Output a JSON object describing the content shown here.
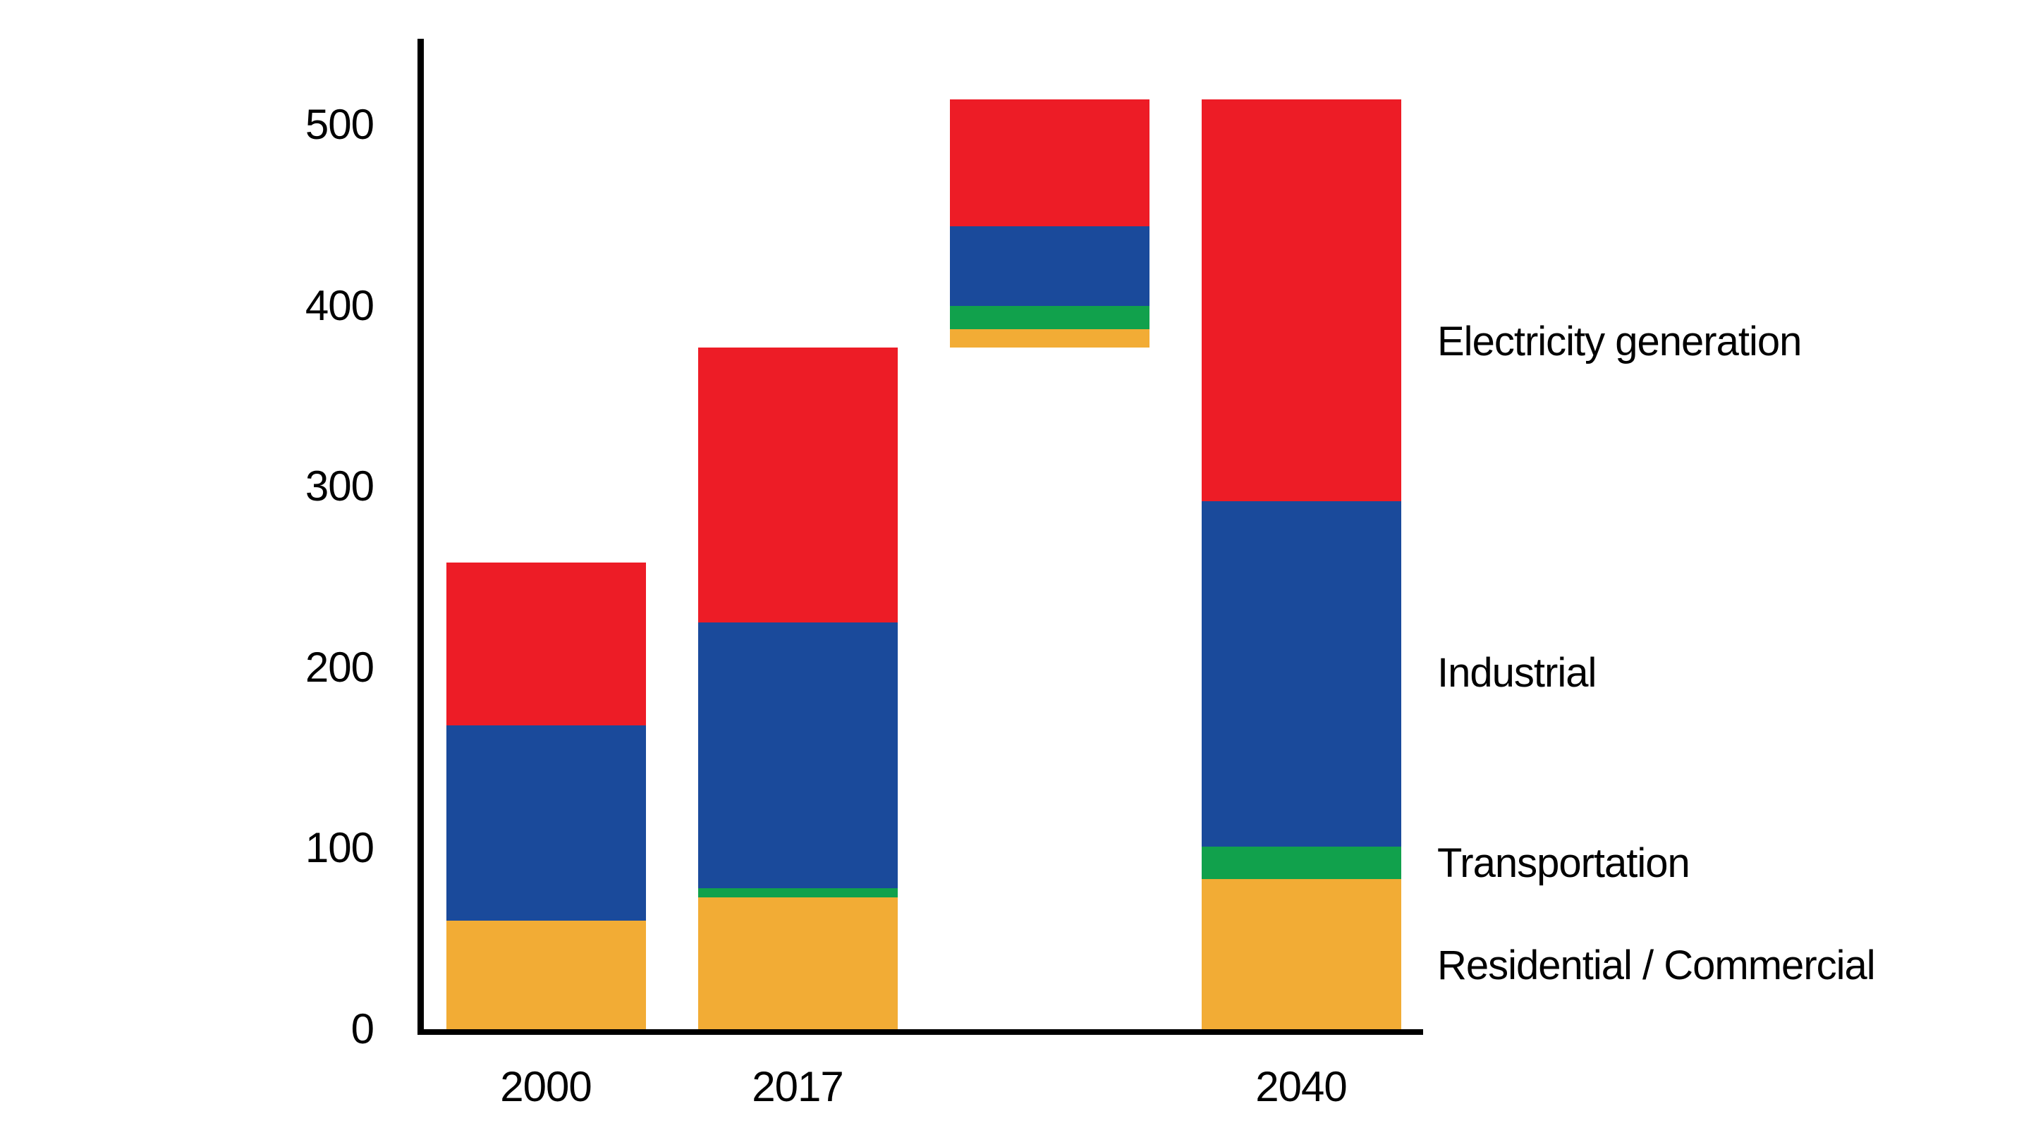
{
  "chart_data": {
    "type": "bar",
    "subtype": "stacked-with-floating-increment-bar",
    "title": "",
    "xlabel": "",
    "ylabel": "",
    "ylim": [
      0,
      540
    ],
    "yticks": [
      0,
      100,
      200,
      300,
      400,
      500
    ],
    "grid": false,
    "legend_position": "right",
    "categories": [
      "2000",
      "2017",
      "",
      "2040"
    ],
    "bar_bases": [
      0,
      0,
      377,
      0
    ],
    "series": [
      {
        "name": "Residential / Commercial",
        "color": "#F2AC35",
        "values": [
          60,
          73,
          10,
          83
        ]
      },
      {
        "name": "Transportation",
        "color": "#11A14C",
        "values": [
          0,
          5,
          13,
          18
        ]
      },
      {
        "name": "Industrial",
        "color": "#1A4A9B",
        "values": [
          108,
          147,
          44,
          191
        ]
      },
      {
        "name": "Electricity generation",
        "color": "#ED1C26",
        "values": [
          90,
          152,
          70,
          222
        ]
      }
    ],
    "bar_totals": [
      258,
      377,
      514,
      514
    ],
    "floating_bar_note": "Third (unlabeled) bar floats from 377 to 514, showing the 2017-to-2040 increment by sector"
  },
  "colors": {
    "axis": "#000000",
    "text": "#000000",
    "background": "#FFFFFF"
  }
}
